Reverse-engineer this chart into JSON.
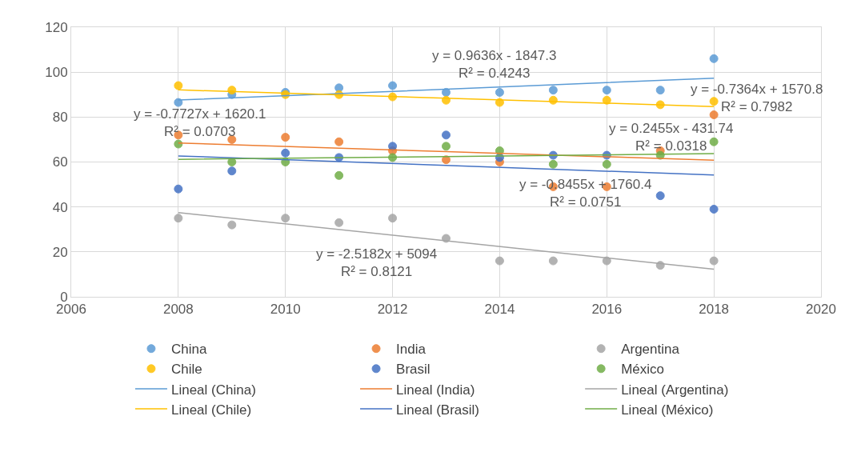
{
  "chart_data": {
    "type": "scatter",
    "x": [
      2008,
      2009,
      2010,
      2011,
      2012,
      2013,
      2014,
      2015,
      2016,
      2017,
      2018
    ],
    "series": [
      {
        "name": "China",
        "color": "#5b9bd5",
        "values": [
          86.5,
          90,
          91,
          93,
          94,
          91,
          91,
          92,
          92,
          92,
          106
        ]
      },
      {
        "name": "India",
        "color": "#ed7d31",
        "values": [
          72,
          70,
          71,
          69,
          65,
          61,
          60,
          49,
          49,
          65,
          81
        ]
      },
      {
        "name": "Argentina",
        "color": "#a5a5a5",
        "values": [
          35,
          32,
          35,
          33,
          35,
          26,
          16,
          16,
          16,
          14,
          16
        ]
      },
      {
        "name": "Chile",
        "color": "#ffc000",
        "values": [
          94,
          92,
          90,
          90,
          89,
          87.5,
          86.5,
          87.5,
          87.5,
          85.5,
          87
        ]
      },
      {
        "name": "Brasil",
        "color": "#4472c4",
        "values": [
          48,
          56,
          64,
          62,
          67,
          72,
          62,
          63,
          63,
          45,
          39
        ]
      },
      {
        "name": "México",
        "color": "#70ad47",
        "values": [
          68,
          60,
          60,
          54,
          62,
          67,
          65,
          59,
          59,
          63,
          69
        ]
      },
      {
        "name": "Lineal (China)",
        "type": "line",
        "marker": "none",
        "color": "#5b9bd5",
        "x": [
          2008,
          2013,
          2018
        ],
        "values": [
          87.6,
          92.4,
          97.3
        ]
      },
      {
        "name": "Lineal (India)",
        "type": "line",
        "marker": "none",
        "color": "#ed7d31",
        "x": [
          2008,
          2013,
          2018
        ],
        "values": [
          68.5,
          64.6,
          60.8
        ]
      },
      {
        "name": "Lineal (Argentina)",
        "type": "line",
        "marker": "none",
        "color": "#a5a5a5",
        "x": [
          2008,
          2013,
          2018
        ],
        "values": [
          37.5,
          24.9,
          12.3
        ]
      },
      {
        "name": "Lineal (Chile)",
        "type": "line",
        "marker": "none",
        "color": "#ffc000",
        "x": [
          2008,
          2013,
          2018
        ],
        "values": [
          92.1,
          88.4,
          84.7
        ]
      },
      {
        "name": "Lineal (Brasil)",
        "type": "line",
        "marker": "none",
        "color": "#4472c4",
        "x": [
          2008,
          2013,
          2018
        ],
        "values": [
          62.7,
          58.5,
          54.2
        ]
      },
      {
        "name": "Lineal (México)",
        "type": "line",
        "marker": "none",
        "color": "#70ad47",
        "x": [
          2008,
          2013,
          2018
        ],
        "values": [
          61.2,
          62.4,
          63.7
        ]
      }
    ],
    "annotations": [
      "y = 0.9636x - 1847.3\nR² = 0.4243",
      "y = -0.7364x + 1570.8\nR² = 0.7982",
      "y = -0.7727x + 1620.1\nR² = 0.0703",
      "y = 0.2455x - 431.74\nR² = 0.0318",
      "y = -0.8455x + 1760.4\nR² = 0.0751",
      "y = -2.5182x + 5094\nR² = 0.8121"
    ],
    "xlim": [
      2006,
      2020
    ],
    "xticks": [
      2006,
      2008,
      2010,
      2012,
      2014,
      2016,
      2018,
      2020
    ],
    "ylim": [
      0,
      120
    ],
    "yticks": [
      0,
      20,
      40,
      60,
      80,
      100,
      120
    ],
    "grid": true,
    "legend": "bottom",
    "marker": "circle",
    "line_style": "solid"
  }
}
